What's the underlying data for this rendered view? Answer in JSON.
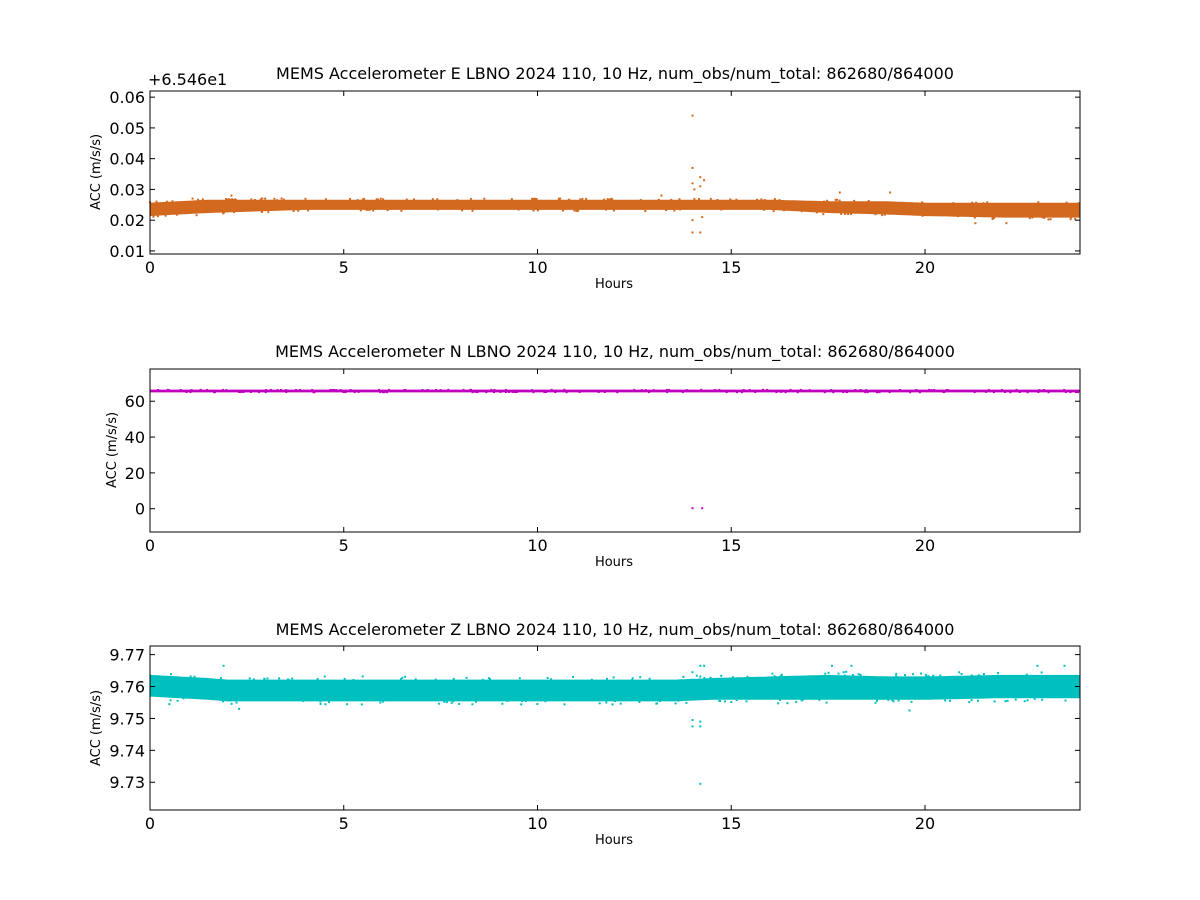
{
  "chart_data": [
    {
      "type": "scatter",
      "title": "MEMS Accelerometer E LBNO 2024 110, 10 Hz, num_obs/num_total: 862680/864000",
      "xlabel": "Hours",
      "ylabel": "ACC (m/s/s)",
      "offset_text": "+6.546e1",
      "xlim": [
        0,
        24
      ],
      "ylim": [
        0.009,
        0.062
      ],
      "xticks": [
        0,
        5,
        10,
        15,
        20
      ],
      "xtick_labels": [
        "0",
        "5",
        "10",
        "15",
        "20"
      ],
      "yticks": [
        0.01,
        0.02,
        0.03,
        0.04,
        0.05,
        0.06
      ],
      "ytick_labels": [
        "0.01",
        "0.02",
        "0.03",
        "0.04",
        "0.05",
        "0.06"
      ],
      "color": "#d2691e",
      "series": [
        {
          "x": [
            0,
            1.5,
            4,
            8,
            12,
            13.9,
            14.3,
            16,
            17.5,
            19,
            20,
            22,
            24
          ],
          "y_low": [
            0.0215,
            0.0225,
            0.0235,
            0.0235,
            0.0235,
            0.0235,
            0.0235,
            0.0235,
            0.0225,
            0.022,
            0.0215,
            0.021,
            0.021
          ],
          "y_high": [
            0.0255,
            0.0265,
            0.0265,
            0.0265,
            0.0265,
            0.0265,
            0.0265,
            0.0265,
            0.026,
            0.026,
            0.0255,
            0.0255,
            0.0255
          ],
          "outliers": [
            {
              "x": 14.0,
              "y": 0.054
            },
            {
              "x": 14.0,
              "y": 0.037
            },
            {
              "x": 14.0,
              "y": 0.032
            },
            {
              "x": 14.05,
              "y": 0.03
            },
            {
              "x": 14.2,
              "y": 0.034
            },
            {
              "x": 14.3,
              "y": 0.033
            },
            {
              "x": 14.2,
              "y": 0.031
            },
            {
              "x": 14.0,
              "y": 0.016
            },
            {
              "x": 14.2,
              "y": 0.016
            },
            {
              "x": 14.0,
              "y": 0.02
            },
            {
              "x": 14.25,
              "y": 0.021
            },
            {
              "x": 13.2,
              "y": 0.028
            },
            {
              "x": 1.1,
              "y": 0.027
            },
            {
              "x": 2.1,
              "y": 0.028
            },
            {
              "x": 17.8,
              "y": 0.029
            },
            {
              "x": 19.1,
              "y": 0.029
            },
            {
              "x": 21.3,
              "y": 0.019
            },
            {
              "x": 22.1,
              "y": 0.019
            }
          ]
        }
      ]
    },
    {
      "type": "scatter",
      "title": "MEMS Accelerometer N LBNO 2024 110, 10 Hz, num_obs/num_total: 862680/864000",
      "xlabel": "Hours",
      "ylabel": "ACC (m/s/s)",
      "xlim": [
        0,
        24
      ],
      "ylim": [
        -13,
        78
      ],
      "xticks": [
        0,
        5,
        10,
        15,
        20
      ],
      "xtick_labels": [
        "0",
        "5",
        "10",
        "15",
        "20"
      ],
      "yticks": [
        0,
        20,
        40,
        60
      ],
      "ytick_labels": [
        "0",
        "20",
        "40",
        "60"
      ],
      "color": "#bf00bf",
      "series": [
        {
          "x": [
            0,
            24
          ],
          "y_low": [
            65.2,
            65.2
          ],
          "y_high": [
            66.2,
            66.2
          ],
          "outliers": [
            {
              "x": 14.0,
              "y": 0.3
            },
            {
              "x": 14.25,
              "y": 0.3
            }
          ]
        }
      ]
    },
    {
      "type": "scatter",
      "title": "MEMS Accelerometer Z LBNO 2024 110, 10 Hz, num_obs/num_total: 862680/864000",
      "xlabel": "Hours",
      "ylabel": "ACC (m/s/s)",
      "xlim": [
        0,
        24
      ],
      "ylim": [
        9.7213,
        9.7727
      ],
      "xticks": [
        0,
        5,
        10,
        15,
        20
      ],
      "xtick_labels": [
        "0",
        "5",
        "10",
        "15",
        "20"
      ],
      "yticks": [
        9.73,
        9.74,
        9.75,
        9.76,
        9.77
      ],
      "ytick_labels": [
        "9.73",
        "9.74",
        "9.75",
        "9.76",
        "9.77"
      ],
      "color": "#00bfbf",
      "series": [
        {
          "x": [
            0,
            1.5,
            2,
            5,
            10,
            13.5,
            14.5,
            16,
            17.5,
            19,
            20,
            22,
            24
          ],
          "y_low": [
            9.757,
            9.756,
            9.7555,
            9.7555,
            9.7555,
            9.7555,
            9.756,
            9.756,
            9.756,
            9.756,
            9.756,
            9.7565,
            9.7565
          ],
          "y_high": [
            9.7635,
            9.7625,
            9.762,
            9.762,
            9.762,
            9.762,
            9.7625,
            9.763,
            9.7635,
            9.763,
            9.763,
            9.7635,
            9.7635
          ],
          "outliers": [
            {
              "x": 14.2,
              "y": 9.7295
            },
            {
              "x": 14.0,
              "y": 9.7475
            },
            {
              "x": 14.2,
              "y": 9.7475
            },
            {
              "x": 14.0,
              "y": 9.7495
            },
            {
              "x": 14.2,
              "y": 9.749
            },
            {
              "x": 14.0,
              "y": 9.7645
            },
            {
              "x": 14.2,
              "y": 9.7665
            },
            {
              "x": 14.3,
              "y": 9.7665
            },
            {
              "x": 1.9,
              "y": 9.7665
            },
            {
              "x": 17.6,
              "y": 9.7665
            },
            {
              "x": 18.1,
              "y": 9.7665
            },
            {
              "x": 22.9,
              "y": 9.7665
            },
            {
              "x": 19.6,
              "y": 9.7525
            },
            {
              "x": 0.5,
              "y": 9.7545
            },
            {
              "x": 2.3,
              "y": 9.753
            },
            {
              "x": 23.6,
              "y": 9.7665
            }
          ]
        }
      ]
    }
  ]
}
